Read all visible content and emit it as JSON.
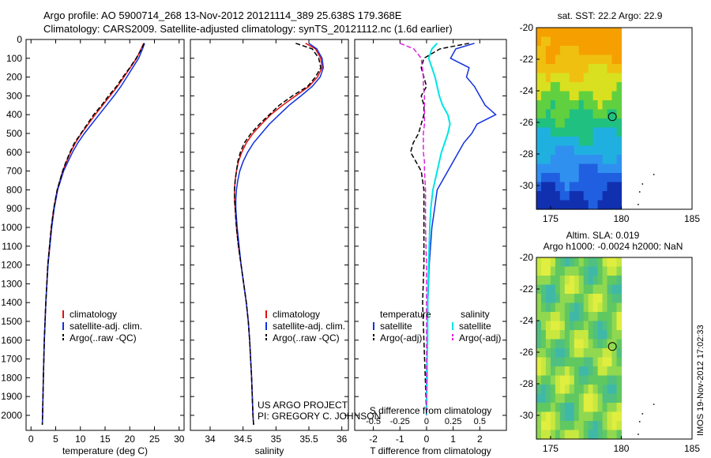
{
  "header": {
    "line1": "Argo profile: AO 5900714_268 13-Nov-2012 20121114_389 25.638S 179.368E",
    "line2": "Climatology: CARS2009. Satellite-adjusted climatology: synTS_20121112.nc (1.6d earlier)"
  },
  "footer": {
    "project": "US ARGO PROJECT",
    "pi": "PI: GREGORY C. JOHNSON"
  },
  "timestamp": "IMOS 19-Nov-2012 17:02:33",
  "colors": {
    "clim": "#e01010",
    "sat": "#1030e0",
    "argo": "#000000",
    "sat_s": "#00e5e5",
    "argo_s": "#e020e0"
  },
  "chart_data": [
    {
      "type": "line",
      "id": "temperature",
      "xlabel": "temperature (deg C)",
      "ylabel": "",
      "xlim": [
        -1,
        31
      ],
      "ylim": [
        2080,
        0
      ],
      "xticks": [
        0,
        5,
        10,
        15,
        20,
        25,
        30
      ],
      "yticks": [
        0,
        100,
        200,
        300,
        400,
        500,
        600,
        700,
        800,
        900,
        1000,
        1100,
        1200,
        1300,
        1400,
        1500,
        1600,
        1700,
        1800,
        1900,
        2000
      ],
      "legend": {
        "position": "lower-center",
        "entries": [
          "climatology",
          "satellite-adj. clim.",
          "Argo(..raw -QC)"
        ]
      },
      "depth": [
        20,
        50,
        100,
        150,
        200,
        250,
        300,
        350,
        400,
        450,
        500,
        550,
        600,
        650,
        700,
        800,
        900,
        1000,
        1200,
        1400,
        1600,
        1800,
        2000,
        2050
      ],
      "series": [
        {
          "name": "climatology",
          "values": [
            22.8,
            22.3,
            21.4,
            20.1,
            18.8,
            17.5,
            16.0,
            14.5,
            13.0,
            11.6,
            10.2,
            9.0,
            8.0,
            7.2,
            6.4,
            5.3,
            4.6,
            4.1,
            3.4,
            3.0,
            2.7,
            2.5,
            2.35,
            2.3
          ]
        },
        {
          "name": "satellite-adj. clim.",
          "values": [
            23.0,
            22.6,
            21.8,
            20.6,
            19.4,
            18.2,
            16.8,
            15.3,
            13.8,
            12.3,
            10.8,
            9.5,
            8.4,
            7.5,
            6.6,
            5.4,
            4.7,
            4.2,
            3.45,
            3.0,
            2.7,
            2.5,
            2.35,
            2.3
          ]
        },
        {
          "name": "Argo(..raw -QC)",
          "values": [
            22.9,
            22.4,
            21.3,
            20.0,
            18.6,
            17.3,
            15.7,
            14.3,
            12.7,
            11.4,
            10.1,
            8.8,
            7.9,
            7.1,
            6.4,
            5.3,
            4.6,
            4.1,
            3.4,
            3.0,
            2.7,
            2.5,
            2.35,
            2.3
          ]
        }
      ]
    },
    {
      "type": "line",
      "id": "salinity",
      "xlabel": "salinity",
      "xlim": [
        33.7,
        36.1
      ],
      "ylim": [
        2080,
        0
      ],
      "xticks": [
        34,
        34.5,
        35,
        35.5,
        36
      ],
      "legend": {
        "position": "lower-center",
        "entries": [
          "climatology",
          "satellite-adj. clim.",
          "Argo(..raw -QC)"
        ]
      },
      "depth": [
        20,
        50,
        100,
        150,
        200,
        250,
        300,
        350,
        400,
        450,
        500,
        550,
        600,
        650,
        700,
        750,
        800,
        850,
        900,
        1000,
        1100,
        1200,
        1300,
        1400,
        1500,
        1600,
        1800,
        2000,
        2050
      ],
      "series": [
        {
          "name": "climatology",
          "values": [
            35.45,
            35.6,
            35.68,
            35.7,
            35.63,
            35.5,
            35.3,
            35.1,
            34.92,
            34.78,
            34.65,
            34.55,
            34.48,
            34.43,
            34.4,
            34.38,
            34.37,
            34.37,
            34.38,
            34.4,
            34.43,
            34.47,
            34.51,
            34.55,
            34.58,
            34.6,
            34.63,
            34.65,
            34.66
          ]
        },
        {
          "name": "satellite-adj. clim.",
          "values": [
            35.5,
            35.62,
            35.7,
            35.72,
            35.67,
            35.55,
            35.38,
            35.2,
            35.05,
            34.9,
            34.78,
            34.66,
            34.57,
            34.5,
            34.45,
            34.42,
            34.4,
            34.39,
            34.39,
            34.41,
            34.44,
            34.47,
            34.51,
            34.55,
            34.58,
            34.6,
            34.63,
            34.65,
            34.66
          ]
        },
        {
          "name": "Argo(..raw -QC)",
          "values": [
            35.3,
            35.55,
            35.65,
            35.68,
            35.6,
            35.48,
            35.25,
            35.05,
            34.9,
            34.75,
            34.62,
            34.52,
            34.46,
            34.42,
            34.4,
            34.38,
            34.37,
            34.37,
            34.38,
            34.4,
            34.43,
            34.47,
            34.51,
            34.55,
            34.58,
            34.6,
            34.63,
            34.65,
            34.66
          ]
        }
      ]
    },
    {
      "type": "line",
      "id": "difference",
      "xlabel": "T difference from climatology",
      "title": "S difference from climatology",
      "xlim": [
        -2.7,
        3.0
      ],
      "ylim": [
        2080,
        0
      ],
      "xticks": [
        -2,
        -1,
        0,
        1,
        2
      ],
      "sticks": [
        -0.5,
        -0.25,
        0,
        0.25,
        0.5
      ],
      "legend": {
        "position": "lower-center",
        "groups": [
          "temperature",
          "salinity"
        ],
        "entries": [
          "satellite",
          "Argo(-adj)",
          "satellite",
          "Argo(-adj)"
        ]
      },
      "depth": [
        20,
        50,
        100,
        150,
        200,
        250,
        300,
        350,
        400,
        450,
        500,
        550,
        600,
        650,
        700,
        800,
        900,
        1000,
        1200,
        1400,
        1600,
        1800,
        2000
      ],
      "series": [
        {
          "name": "satellite",
          "group": "temperature",
          "values": [
            1.8,
            1.1,
            0.9,
            1.6,
            1.5,
            1.8,
            2.0,
            2.2,
            2.6,
            1.9,
            1.7,
            1.4,
            1.2,
            1.0,
            0.8,
            0.4,
            0.3,
            0.2,
            0.1,
            0.05,
            0.03,
            0.02,
            0.0
          ]
        },
        {
          "name": "Argo(-adj)",
          "group": "temperature",
          "values": [
            1.6,
            0.5,
            -0.1,
            -0.2,
            -0.1,
            0.0,
            -0.2,
            -0.1,
            -0.1,
            -0.2,
            -0.3,
            -0.5,
            -0.6,
            -0.4,
            -0.2,
            -0.1,
            -0.1,
            -0.1,
            -0.1,
            -0.15,
            -0.1,
            -0.05,
            0.0
          ]
        },
        {
          "name": "satellite",
          "group": "salinity",
          "values": [
            0.1,
            0.05,
            0.02,
            0.05,
            0.08,
            0.1,
            0.12,
            0.15,
            0.2,
            0.22,
            0.2,
            0.17,
            0.14,
            0.12,
            0.1,
            0.06,
            0.04,
            0.03,
            0.02,
            0.01,
            0.01,
            0.0,
            0.0
          ]
        },
        {
          "name": "Argo(-adj)",
          "group": "salinity",
          "values": [
            -0.25,
            -0.12,
            -0.05,
            -0.04,
            -0.03,
            -0.03,
            -0.02,
            -0.02,
            -0.02,
            -0.02,
            -0.03,
            -0.03,
            -0.03,
            -0.02,
            -0.02,
            -0.01,
            -0.01,
            -0.01,
            0.0,
            0.0,
            0.0,
            0.0,
            0.0
          ]
        }
      ]
    },
    {
      "type": "heatmap",
      "id": "sst_map",
      "title": "sat. SST: 22.2  Argo: 22.9",
      "xlim": [
        174,
        185
      ],
      "ylim": [
        -31.5,
        -20
      ],
      "xticks": [
        175,
        180,
        185
      ],
      "yticks": [
        -20,
        -22,
        -24,
        -26,
        -28,
        -30
      ],
      "marker": {
        "lon": 179.368,
        "lat": -25.638
      }
    },
    {
      "type": "heatmap",
      "id": "sla_map",
      "title": "Altim. SLA: 0.019",
      "subtitle": "Argo h1000: -0.0024  h2000: NaN",
      "xlim": [
        174,
        185
      ],
      "ylim": [
        -31.5,
        -20
      ],
      "xticks": [
        175,
        180,
        185
      ],
      "yticks": [
        -20,
        -22,
        -24,
        -26,
        -28,
        -30
      ],
      "marker": {
        "lon": 179.368,
        "lat": -25.638
      }
    }
  ]
}
